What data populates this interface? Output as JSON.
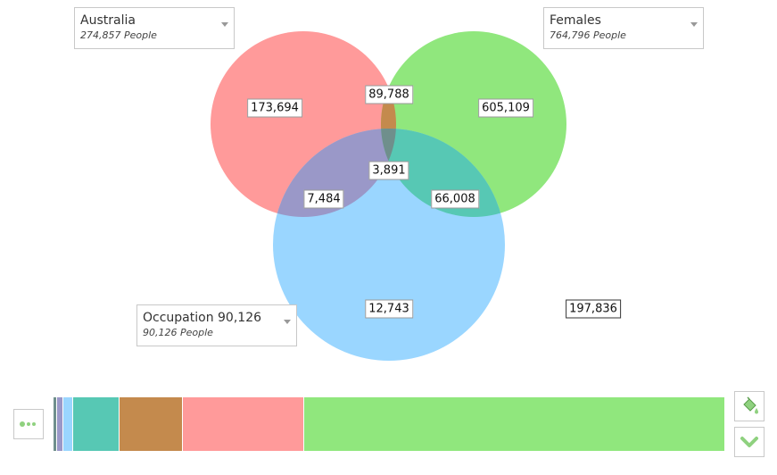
{
  "selectors": {
    "set_a": {
      "name": "Australia",
      "count": "274,857 People"
    },
    "set_b": {
      "name": "Females",
      "count": "764,796 People"
    },
    "set_c": {
      "name": "Occupation 90,126",
      "count": "90,126 People"
    }
  },
  "regions": {
    "a_only": "173,694",
    "a_b": "89,788",
    "b_only": "605,109",
    "a_b_c": "3,891",
    "a_c": "7,484",
    "b_c": "66,008",
    "c_only": "12,743",
    "none": "197,836"
  },
  "colors": {
    "set_a": "#ff9a9a",
    "set_b": "#90e77d",
    "set_c": "#9ad6ff",
    "a_b": "#c48a4d",
    "a_c": "#9a98c8",
    "b_c": "#57c8b4",
    "a_b_c": "#6f8f8c"
  },
  "distribution_bar": [
    {
      "region": "a_b_c",
      "color": "#6f8f8c",
      "value": 3891
    },
    {
      "region": "a_c",
      "color": "#9a98c8",
      "value": 7484
    },
    {
      "region": "c_only",
      "color": "#9ad6ff",
      "value": 12743
    },
    {
      "region": "b_c",
      "color": "#57c8b4",
      "value": 66008
    },
    {
      "region": "a_b",
      "color": "#c48a4d",
      "value": 89788
    },
    {
      "region": "a_only",
      "color": "#ff9a9a",
      "value": 173694
    },
    {
      "region": "b_only",
      "color": "#90e77d",
      "value": 605109
    }
  ],
  "icons": {
    "left_button": "more-dots-icon",
    "paint_button": "paint-bucket-icon",
    "collapse_button": "chevron-down-icon"
  }
}
